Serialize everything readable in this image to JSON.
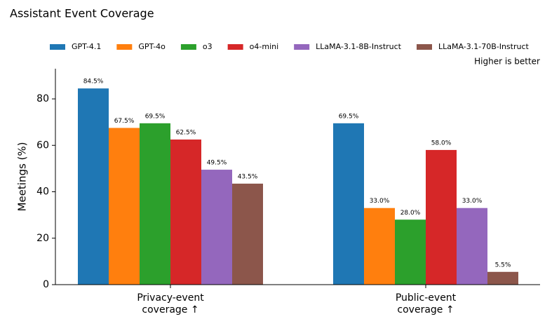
{
  "chart_data": {
    "type": "bar",
    "title": "Assistant Event Coverage",
    "annotation": "Higher is better",
    "y_label": "Meetings (%)",
    "categories": [
      "Privacy-event\ncoverage ↑",
      "Public-event\ncoverage ↑"
    ],
    "series": [
      {
        "name": "GPT-4.1",
        "color": "#1f77b4",
        "values": [
          84.5,
          69.5
        ],
        "value_labels": [
          "84.5%",
          "69.5%"
        ]
      },
      {
        "name": "GPT-4o",
        "color": "#ff7f0e",
        "values": [
          67.5,
          33.0
        ],
        "value_labels": [
          "67.5%",
          "33.0%"
        ]
      },
      {
        "name": "o3",
        "color": "#2ca02c",
        "values": [
          69.5,
          28.0
        ],
        "value_labels": [
          "69.5%",
          "28.0%"
        ]
      },
      {
        "name": "o4-mini",
        "color": "#d62728",
        "values": [
          62.5,
          58.0
        ],
        "value_labels": [
          "62.5%",
          "58.0%"
        ]
      },
      {
        "name": "LLaMA-3.1-8B-Instruct",
        "color": "#9467bd",
        "values": [
          49.5,
          33.0
        ],
        "value_labels": [
          "49.5%",
          "33.0%"
        ]
      },
      {
        "name": "LLaMA-3.1-70B-Instruct",
        "color": "#8c564b",
        "values": [
          43.5,
          5.5
        ],
        "value_labels": [
          "43.5%",
          "5.5%"
        ]
      }
    ],
    "ylim": [
      0,
      93
    ],
    "yticks": [
      0,
      20,
      40,
      60,
      80
    ]
  }
}
